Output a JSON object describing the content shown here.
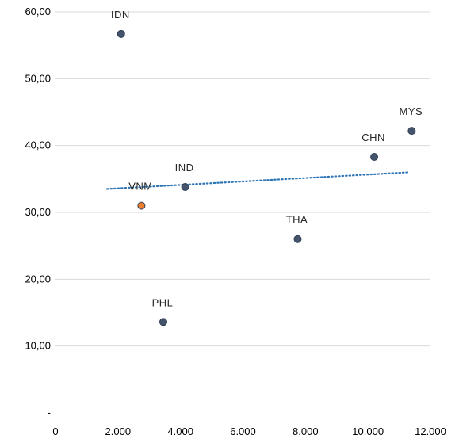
{
  "chart_data": {
    "type": "scatter",
    "title": "",
    "xlabel": "",
    "ylabel": "",
    "xlim": [
      0,
      12000
    ],
    "ylim": [
      0,
      60
    ],
    "x_ticks": [
      {
        "value": 0,
        "label": "0"
      },
      {
        "value": 2000,
        "label": "2.000"
      },
      {
        "value": 4000,
        "label": "4.000"
      },
      {
        "value": 6000,
        "label": "6.000"
      },
      {
        "value": 8000,
        "label": "8.000"
      },
      {
        "value": 10000,
        "label": "10.000"
      },
      {
        "value": 12000,
        "label": "12.000"
      }
    ],
    "y_ticks": [
      {
        "value": 0,
        "label": "-"
      },
      {
        "value": 10,
        "label": "10,00"
      },
      {
        "value": 20,
        "label": "20,00"
      },
      {
        "value": 30,
        "label": "30,00"
      },
      {
        "value": 40,
        "label": "40,00"
      },
      {
        "value": 50,
        "label": "50,00"
      },
      {
        "value": 60,
        "label": "60,00"
      }
    ],
    "grid": "horizontal",
    "points": [
      {
        "label": "IDN",
        "x": 2100,
        "y": 56.7,
        "color": "#44546a",
        "label_pos": "above"
      },
      {
        "label": "VNM",
        "x": 2750,
        "y": 31.0,
        "color": "#ed7d31",
        "label_pos": "above"
      },
      {
        "label": "IND",
        "x": 4150,
        "y": 33.8,
        "color": "#44546a",
        "label_pos": "above"
      },
      {
        "label": "PHL",
        "x": 3450,
        "y": 13.6,
        "color": "#44546a",
        "label_pos": "above"
      },
      {
        "label": "THA",
        "x": 7750,
        "y": 26.0,
        "color": "#44546a",
        "label_pos": "above"
      },
      {
        "label": "CHN",
        "x": 10200,
        "y": 38.3,
        "color": "#44546a",
        "label_pos": "above"
      },
      {
        "label": "MYS",
        "x": 11400,
        "y": 42.2,
        "color": "#44546a",
        "label_pos": "above"
      }
    ],
    "trendline": {
      "type": "linear",
      "style": "dotted",
      "color": "#2e75b6",
      "x": [
        1650,
        11300
      ],
      "y": [
        33.5,
        36.0
      ]
    }
  }
}
